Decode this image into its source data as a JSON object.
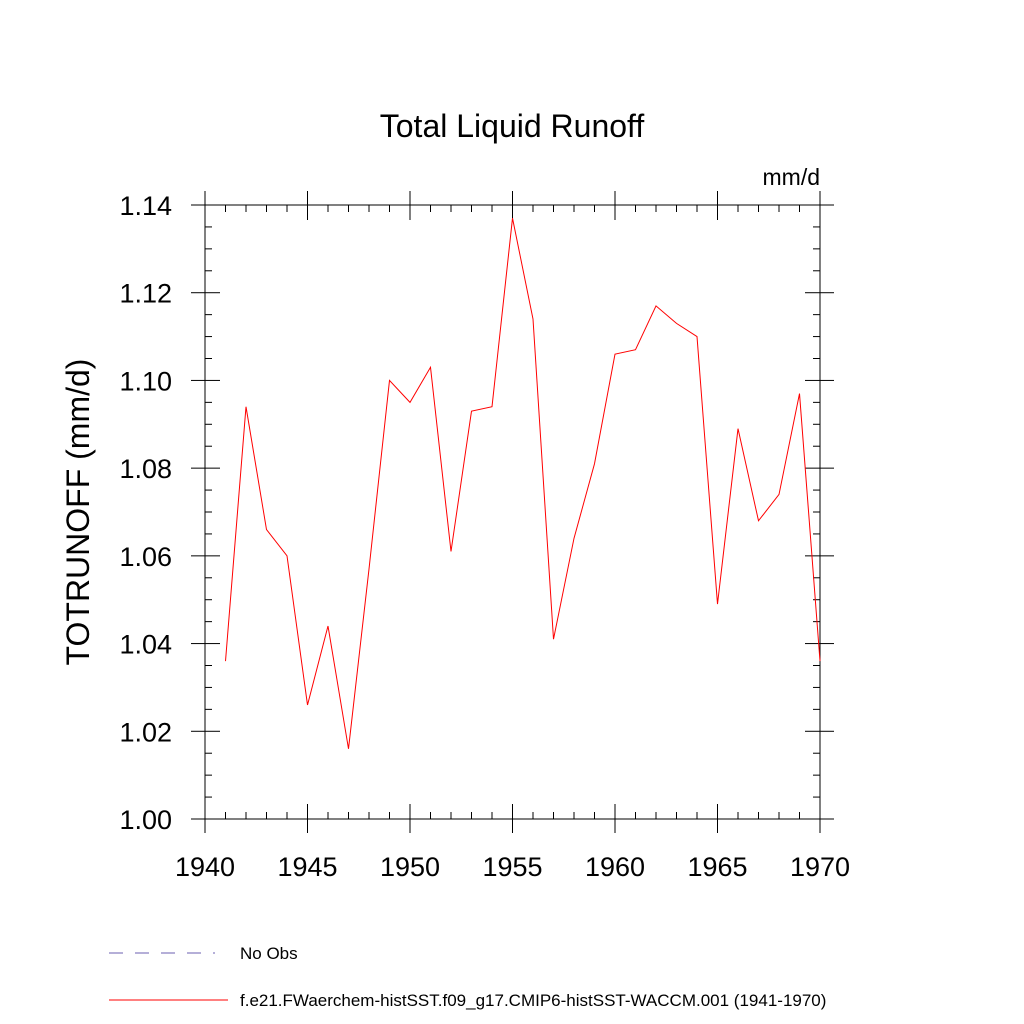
{
  "chart_data": {
    "type": "line",
    "title": "Total Liquid Runoff",
    "units": "mm/d",
    "ylabel": "TOTRUNOFF  (mm/d)",
    "xlabel": "",
    "xlim": [
      1940,
      1970
    ],
    "ylim": [
      1.0,
      1.14
    ],
    "xticks": [
      "1940",
      "1945",
      "1950",
      "1955",
      "1960",
      "1965",
      "1970"
    ],
    "yticks": [
      "1.00",
      "1.02",
      "1.04",
      "1.06",
      "1.08",
      "1.10",
      "1.12",
      "1.14"
    ],
    "x": [
      1941,
      1942,
      1943,
      1944,
      1945,
      1946,
      1947,
      1948,
      1949,
      1950,
      1951,
      1952,
      1953,
      1954,
      1955,
      1956,
      1957,
      1958,
      1959,
      1960,
      1961,
      1962,
      1963,
      1964,
      1965,
      1966,
      1967,
      1968,
      1969,
      1970
    ],
    "series": [
      {
        "name": "f.e21.FWaerchem-histSST.f09_g17.CMIP6-histSST-WACCM.001 (1941-1970)",
        "color": "#ff0000",
        "values": [
          1.036,
          1.094,
          1.066,
          1.06,
          1.026,
          1.044,
          1.016,
          1.057,
          1.1,
          1.095,
          1.103,
          1.061,
          1.093,
          1.094,
          1.137,
          1.114,
          1.041,
          1.064,
          1.081,
          1.106,
          1.107,
          1.117,
          1.113,
          1.11,
          1.049,
          1.089,
          1.068,
          1.074,
          1.097,
          1.036
        ]
      }
    ],
    "legend": {
      "placement": "bottom",
      "entries": [
        {
          "label": "No Obs",
          "style": "dashed",
          "color": "#6b5fb0"
        },
        {
          "label": "f.e21.FWaerchem-histSST.f09_g17.CMIP6-histSST-WACCM.001 (1941-1970)",
          "style": "solid",
          "color": "#ff0000"
        }
      ]
    },
    "grid": false
  }
}
